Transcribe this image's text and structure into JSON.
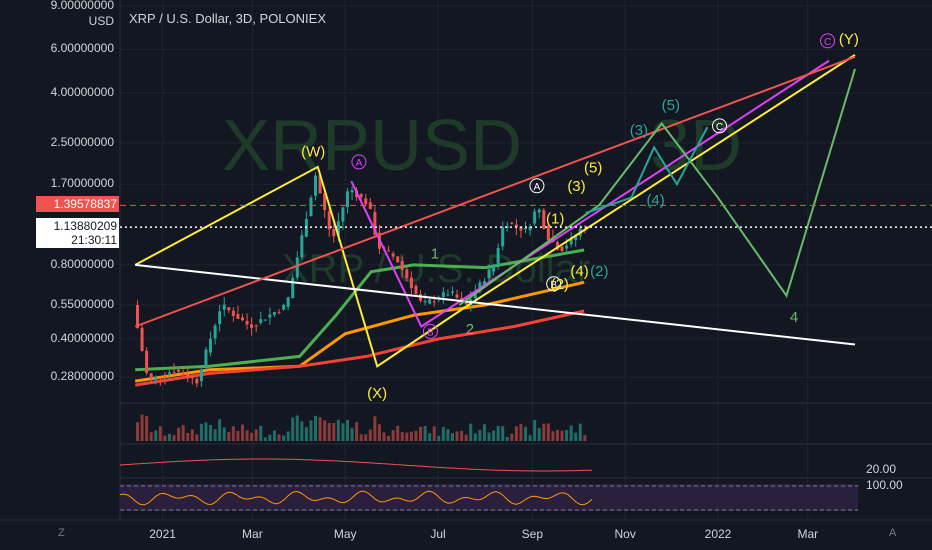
{
  "header": {
    "title": "XRP / U.S. Dollar, 3D, POLONIEX",
    "currency": "USD"
  },
  "watermark": {
    "symbol": "XRPUSD",
    "interval": "3D",
    "subtitle": "XRP / U.S. Dollar"
  },
  "price_axis": {
    "ticks": [
      {
        "value": 9.0,
        "label": "9.00000000"
      },
      {
        "value": 6.0,
        "label": "6.00000000"
      },
      {
        "value": 4.0,
        "label": "4.00000000"
      },
      {
        "value": 2.5,
        "label": "2.50000000"
      },
      {
        "value": 1.7,
        "label": "1.70000000"
      },
      {
        "value": 0.8,
        "label": "0.80000000"
      },
      {
        "value": 0.55,
        "label": "0.55000000"
      },
      {
        "value": 0.4,
        "label": "0.40000000"
      },
      {
        "value": 0.28,
        "label": "0.28000000"
      }
    ],
    "red_tag": {
      "value": 1.39578837,
      "label": "1.39578837"
    },
    "last_price": {
      "value": 1.13880209,
      "label": "1.13880209",
      "countdown": "21:30:11"
    }
  },
  "time_axis": {
    "labels": [
      "2021",
      "Mar",
      "May",
      "Jul",
      "Sep",
      "Nov",
      "2022",
      "Mar"
    ],
    "left_corner": "Z",
    "right_corner": "A"
  },
  "indicators": {
    "label_20": "20.00",
    "label_100": "100.00"
  },
  "chart_data": {
    "type": "candlestick",
    "title": "XRP / U.S. Dollar, 3D, POLONIEX",
    "y_scale": "log",
    "ylim": [
      0.22,
      9.0
    ],
    "price_path": [
      {
        "date": "2020-12-14",
        "price": 0.55
      },
      {
        "date": "2020-12-24",
        "price": 0.27
      },
      {
        "date": "2021-01-10",
        "price": 0.3
      },
      {
        "date": "2021-01-25",
        "price": 0.27
      },
      {
        "date": "2021-02-10",
        "price": 0.55
      },
      {
        "date": "2021-03-01",
        "price": 0.45
      },
      {
        "date": "2021-03-25",
        "price": 0.55
      },
      {
        "date": "2021-04-13",
        "price": 1.85
      },
      {
        "date": "2021-04-24",
        "price": 1.0
      },
      {
        "date": "2021-05-05",
        "price": 1.65
      },
      {
        "date": "2021-05-18",
        "price": 1.4
      },
      {
        "date": "2021-05-24",
        "price": 0.95
      },
      {
        "date": "2021-06-05",
        "price": 0.85
      },
      {
        "date": "2021-06-22",
        "price": 0.55
      },
      {
        "date": "2021-07-10",
        "price": 0.62
      },
      {
        "date": "2021-07-21",
        "price": 0.55
      },
      {
        "date": "2021-08-08",
        "price": 0.8
      },
      {
        "date": "2021-08-15",
        "price": 1.2
      },
      {
        "date": "2021-08-30",
        "price": 1.1
      },
      {
        "date": "2021-09-06",
        "price": 1.4
      },
      {
        "date": "2021-09-12",
        "price": 1.05
      },
      {
        "date": "2021-09-21",
        "price": 0.92
      },
      {
        "date": "2021-10-01",
        "price": 1.05
      },
      {
        "date": "2021-10-05",
        "price": 1.13880209
      }
    ],
    "moving_averages": [
      {
        "name": "",
        "color": "#4caf50",
        "points": [
          {
            "date": "2020-12-14",
            "price": 0.3
          },
          {
            "date": "2021-02-01",
            "price": 0.31
          },
          {
            "date": "2021-04-01",
            "price": 0.34
          },
          {
            "date": "2021-04-25",
            "price": 0.5
          },
          {
            "date": "2021-05-18",
            "price": 0.75
          },
          {
            "date": "2021-06-15",
            "price": 0.8
          },
          {
            "date": "2021-08-01",
            "price": 0.78
          },
          {
            "date": "2021-10-05",
            "price": 0.92
          }
        ]
      },
      {
        "name": "",
        "color": "#ff9800",
        "points": [
          {
            "date": "2020-12-14",
            "price": 0.27
          },
          {
            "date": "2021-02-01",
            "price": 0.3
          },
          {
            "date": "2021-04-01",
            "price": 0.31
          },
          {
            "date": "2021-05-01",
            "price": 0.42
          },
          {
            "date": "2021-06-15",
            "price": 0.5
          },
          {
            "date": "2021-08-01",
            "price": 0.55
          },
          {
            "date": "2021-10-05",
            "price": 0.68
          }
        ]
      },
      {
        "name": "",
        "color": "#f44336",
        "points": [
          {
            "date": "2020-12-14",
            "price": 0.26
          },
          {
            "date": "2021-02-01",
            "price": 0.29
          },
          {
            "date": "2021-04-01",
            "price": 0.31
          },
          {
            "date": "2021-05-15",
            "price": 0.34
          },
          {
            "date": "2021-07-01",
            "price": 0.4
          },
          {
            "date": "2021-08-20",
            "price": 0.45
          },
          {
            "date": "2021-10-05",
            "price": 0.52
          }
        ]
      }
    ],
    "drawings": [
      {
        "color": "#ffeb3b",
        "points": [
          {
            "date": "2020-12-14",
            "price": 0.8
          },
          {
            "date": "2021-04-13",
            "price": 2.0
          },
          {
            "date": "2021-05-22",
            "price": 0.31
          },
          {
            "date": "2021-07-21",
            "price": 0.55
          },
          {
            "date": "2022-04-01",
            "price": 5.7
          }
        ]
      },
      {
        "color": "#e040fb",
        "points": [
          {
            "date": "2021-05-05",
            "price": 1.75
          },
          {
            "date": "2021-06-20",
            "price": 0.45
          },
          {
            "date": "2022-03-15",
            "price": 5.4
          }
        ]
      },
      {
        "color": "#ffffff",
        "points": [
          {
            "date": "2020-12-14",
            "price": 0.8
          },
          {
            "date": "2022-04-01",
            "price": 0.38
          }
        ]
      },
      {
        "color": "#ef5350",
        "points": [
          {
            "date": "2020-12-14",
            "price": 0.45
          },
          {
            "date": "2022-04-01",
            "price": 5.6
          }
        ]
      },
      {
        "color": "#66bb6a",
        "points": [
          {
            "date": "2021-07-15",
            "price": 0.55
          },
          {
            "date": "2021-10-15",
            "price": 1.4
          },
          {
            "date": "2021-11-25",
            "price": 3.0
          },
          {
            "date": "2022-01-01",
            "price": 1.5
          },
          {
            "date": "2022-02-15",
            "price": 0.6
          },
          {
            "date": "2022-04-01",
            "price": 5.0
          }
        ]
      },
      {
        "color": "#26a69a",
        "points": [
          {
            "date": "2021-10-06",
            "price": 1.3
          },
          {
            "date": "2021-11-05",
            "price": 1.5
          },
          {
            "date": "2021-11-20",
            "price": 2.4
          },
          {
            "date": "2021-12-05",
            "price": 1.7
          },
          {
            "date": "2021-12-25",
            "price": 2.9
          }
        ]
      }
    ],
    "wave_labels": [
      {
        "text": "(W)",
        "color": "#ffeb3b",
        "date": "2021-04-10",
        "price": 2.2
      },
      {
        "text": "(X)",
        "color": "#ffeb3b",
        "date": "2021-05-22",
        "price": 0.23
      },
      {
        "text": "(Y)",
        "color": "#ffeb3b",
        "date": "2022-03-28",
        "price": 6.3
      },
      {
        "text": "A",
        "color": "#e040fb",
        "date": "2021-05-10",
        "price": 2.0,
        "circled": true
      },
      {
        "text": "B",
        "color": "#e040fb",
        "date": "2021-06-26",
        "price": 0.41,
        "circled": true
      },
      {
        "text": "C",
        "color": "#e040fb",
        "date": "2022-03-14",
        "price": 6.2,
        "circled": true
      },
      {
        "text": "A",
        "color": "#ffffff",
        "date": "2021-09-04",
        "price": 1.6,
        "circled": true
      },
      {
        "text": "B",
        "color": "#ffffff",
        "date": "2021-09-15",
        "price": 0.64,
        "circled": true
      },
      {
        "text": "C",
        "color": "#ffffff",
        "date": "2022-01-02",
        "price": 2.8,
        "circled": true
      },
      {
        "text": "1",
        "color": "#66bb6a",
        "date": "2021-06-29",
        "price": 0.85
      },
      {
        "text": "2",
        "color": "#66bb6a",
        "date": "2021-07-22",
        "price": 0.42
      },
      {
        "text": "4",
        "color": "#66bb6a",
        "date": "2022-02-20",
        "price": 0.47
      },
      {
        "text": "(1)",
        "color": "#ffeb3b",
        "date": "2021-09-16",
        "price": 1.18
      },
      {
        "text": "(2)",
        "color": "#ffeb3b",
        "date": "2021-09-19",
        "price": 0.64
      },
      {
        "text": "(3)",
        "color": "#ffeb3b",
        "date": "2021-09-30",
        "price": 1.6
      },
      {
        "text": "(4)",
        "color": "#ffeb3b",
        "date": "2021-10-02",
        "price": 0.72
      },
      {
        "text": "(5)",
        "color": "#ffeb3b",
        "date": "2021-10-11",
        "price": 1.9
      },
      {
        "text": "(3)",
        "color": "#26a69a",
        "date": "2021-11-10",
        "price": 2.7
      },
      {
        "text": "(4)",
        "color": "#26a69a",
        "date": "2021-11-21",
        "price": 1.4
      },
      {
        "text": "(5)",
        "color": "#26a69a",
        "date": "2021-12-01",
        "price": 3.4
      },
      {
        "text": "(2)",
        "color": "#26a69a",
        "date": "2021-10-15",
        "price": 0.72
      }
    ]
  }
}
